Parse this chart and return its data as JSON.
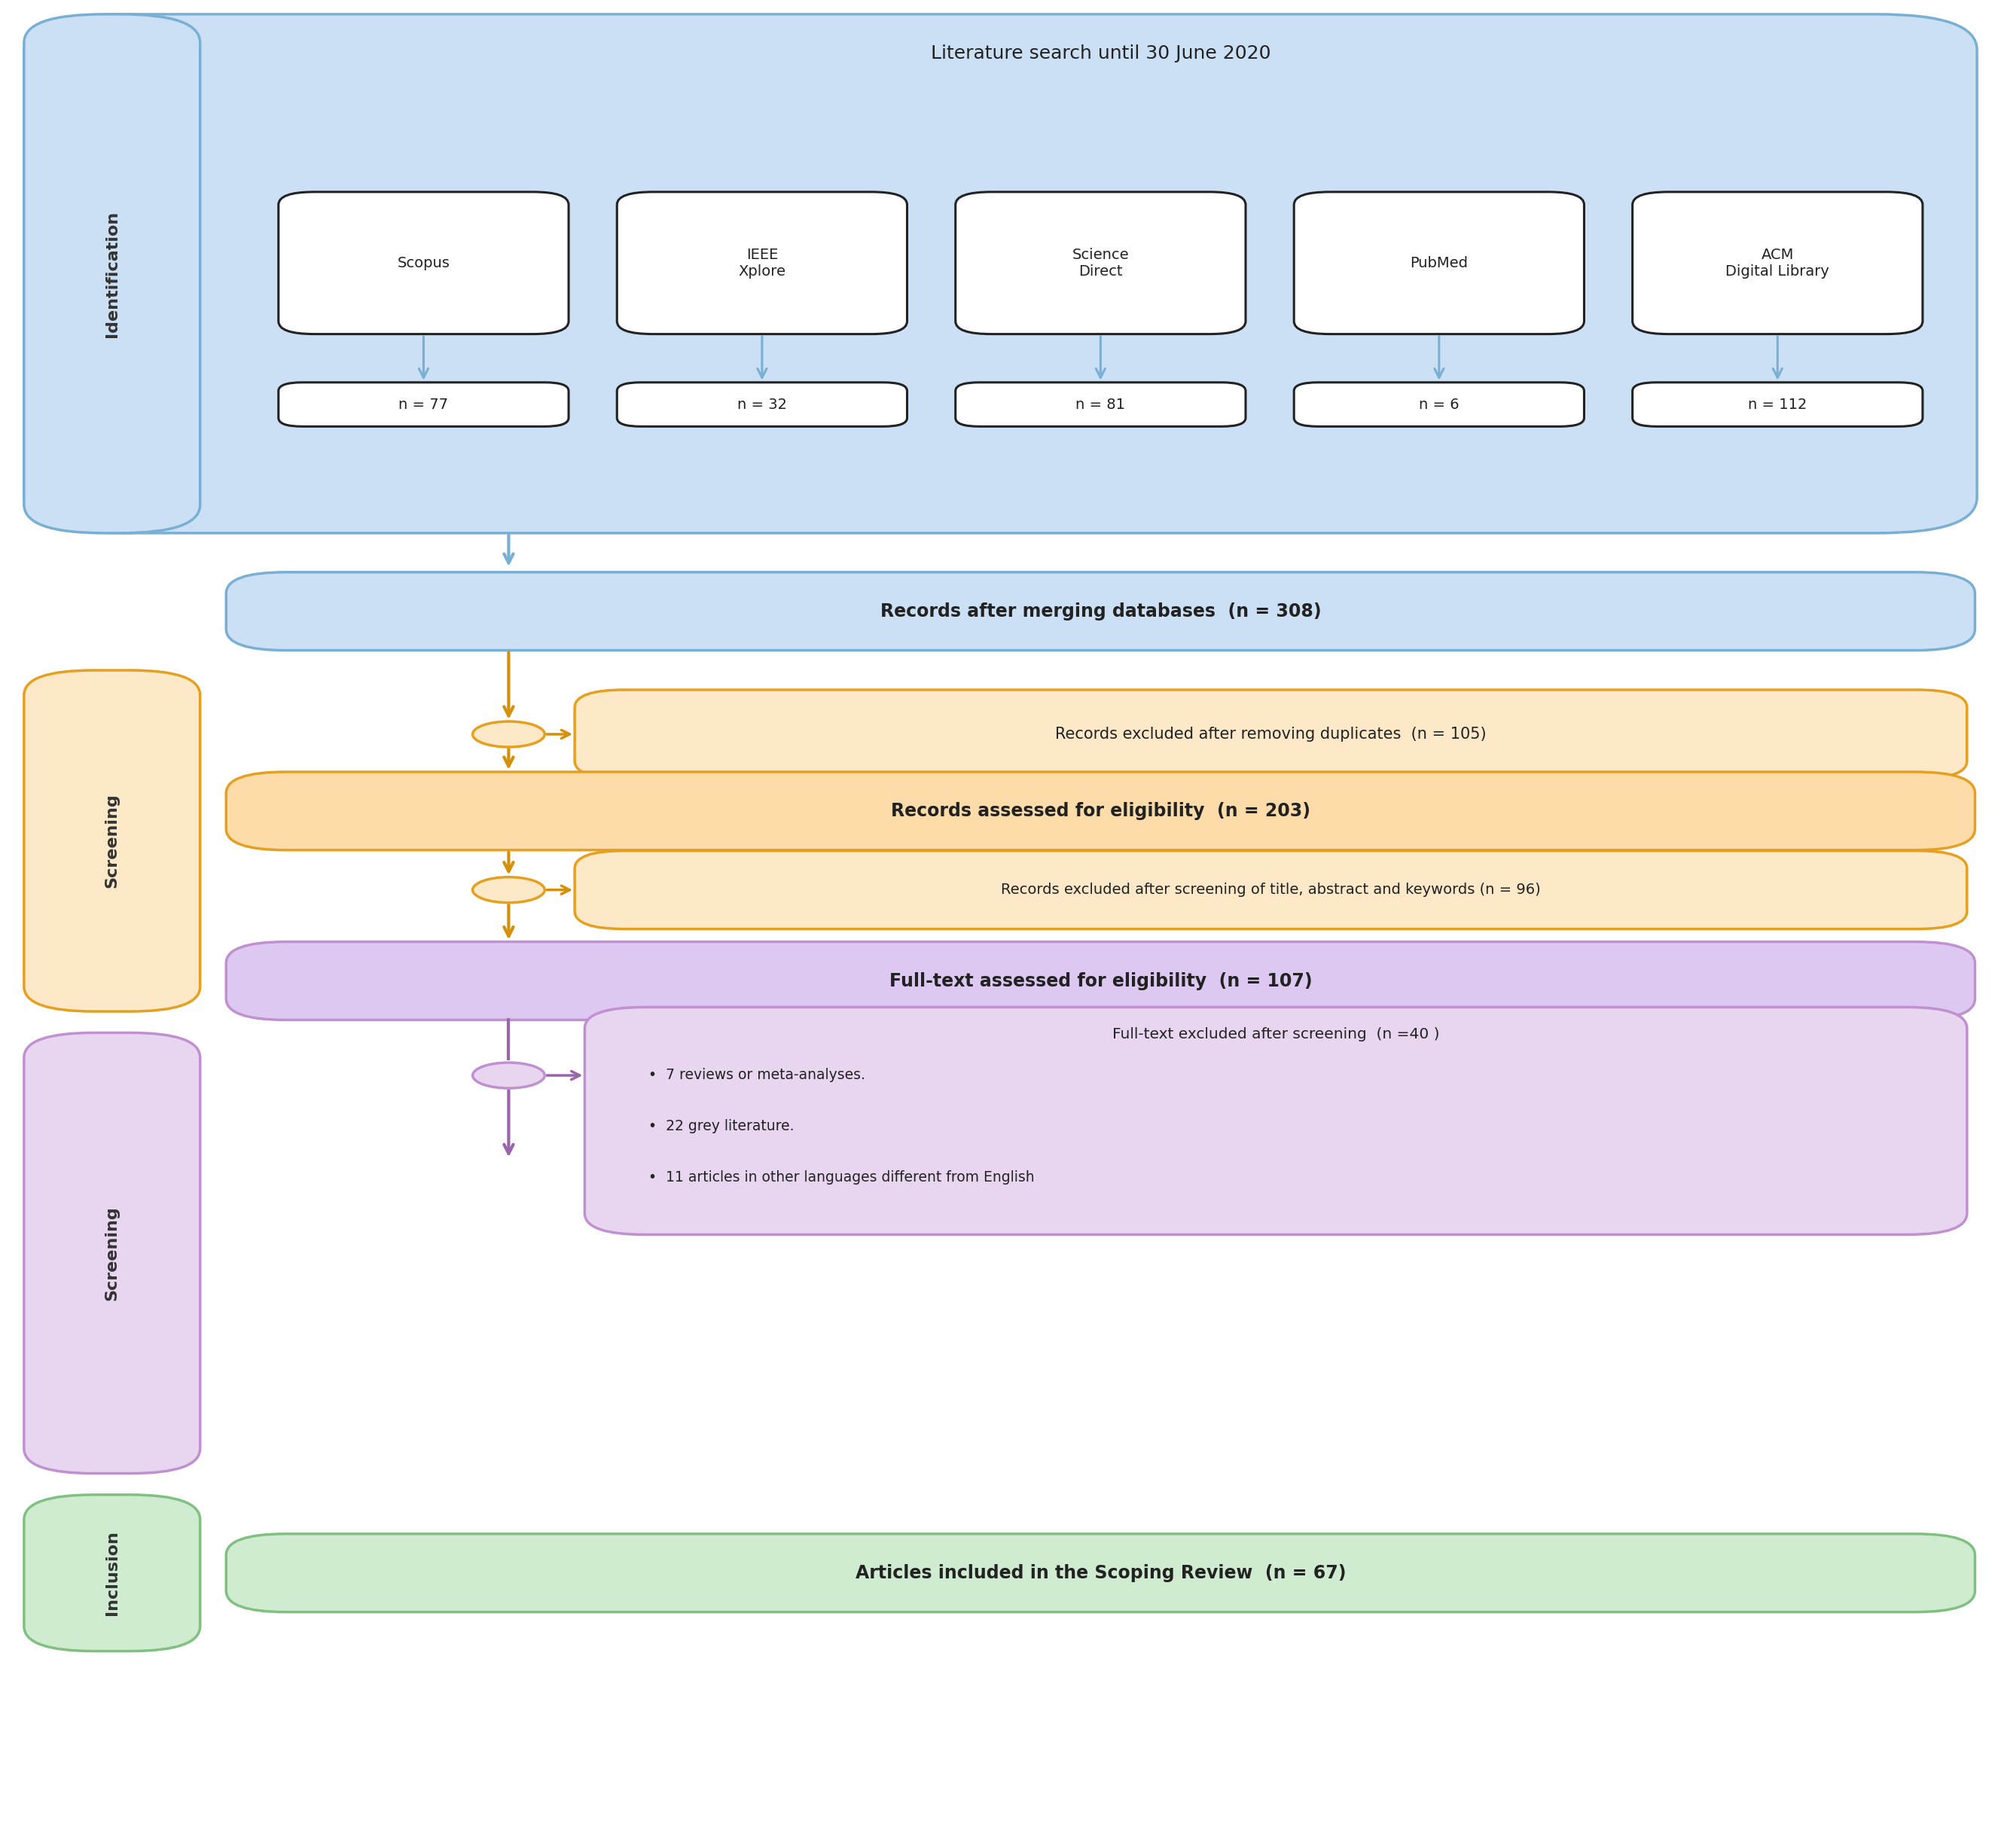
{
  "title": "Literature search until 30 June 2020",
  "databases": [
    "Scopus",
    "IEEE\nXplore",
    "Science\nDirect",
    "PubMed",
    "ACM\nDigital Library"
  ],
  "db_counts": [
    "n = 77",
    "n = 32",
    "n = 81",
    "n = 6",
    "n = 112"
  ],
  "records_merged": "Records after merging databases  (n = 308)",
  "excluded_duplicates": "Records excluded after removing duplicates  (n = 105)",
  "assessed_eligibility": "Records assessed for eligibility  (n = 203)",
  "excluded_screening": "Records excluded after screening of title, abstract and keywords (n = 96)",
  "fulltext_assessed": "Full-text assessed for eligibility  (n = 107)",
  "fulltext_excluded_title": "Full-text excluded after screening  (n =40 )",
  "fulltext_excluded_bullets": [
    "7 reviews or meta-analyses.",
    "22 grey literature.",
    "11 articles in other languages different from English"
  ],
  "included": "Articles included in the Scoping Review  (n = 67)",
  "colors": {
    "blue_bg": "#cce0f5",
    "blue_border": "#7aafd4",
    "blue_arrow": "#7aafd4",
    "orange_bg": "#fde8c8",
    "orange_border": "#e6a020",
    "orange_arrow": "#d4900a",
    "orange_fill_box": "#fddcaa",
    "purple_bg": "#e8d5f0",
    "purple_border": "#c090d0",
    "purple_arrow": "#9966aa",
    "purple_fill_box": "#dcc8f0",
    "green_bg": "#d0ecd0",
    "green_border": "#80c080",
    "white_bg": "#ffffff",
    "dark_text": "#222222",
    "side_label_text": "#333333"
  }
}
